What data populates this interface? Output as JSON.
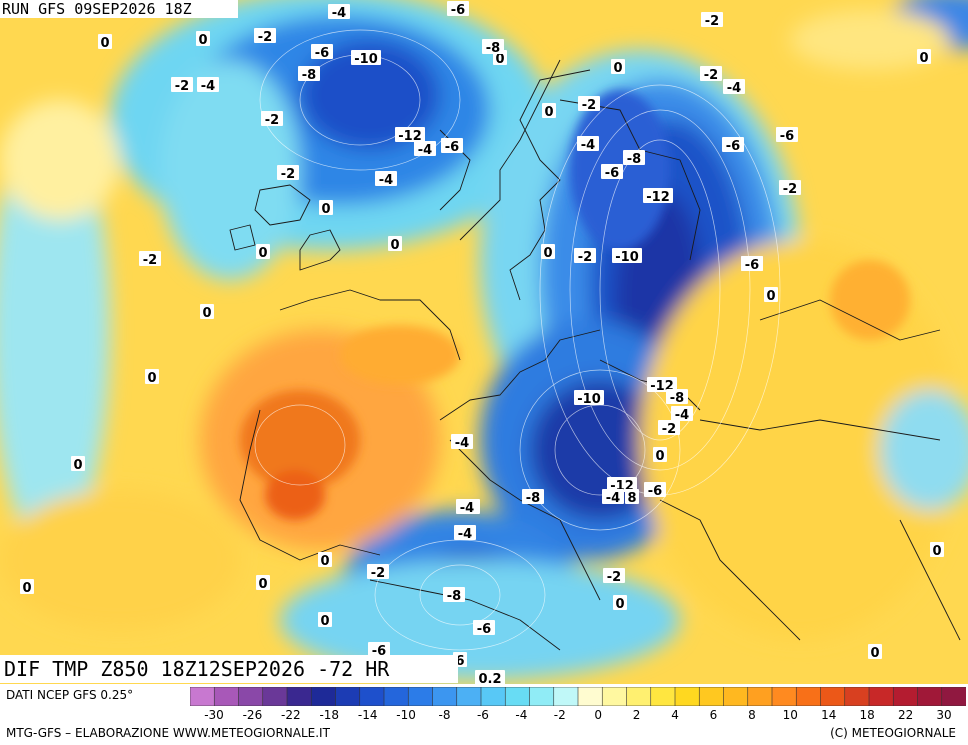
{
  "header": {
    "run_title": "RUN GFS 09SEP2026 18Z"
  },
  "map": {
    "title": "DIF TMP Z850 18Z12SEP2026 -72 HR",
    "contour_labels": [
      "0",
      "-2",
      "-4",
      "-6",
      "-8",
      "-10",
      "-12",
      "-4",
      "-6",
      "-2",
      "0",
      "0",
      "-2",
      "-4",
      "-6",
      "-8",
      "-2",
      "-4",
      "0",
      "0",
      "0",
      "-2",
      "0",
      "0",
      "0",
      "-4",
      "-6",
      "-8",
      "-6",
      "-4",
      "-2",
      "0",
      "0",
      "0",
      "-2",
      "-4",
      "-6",
      "-8",
      "-10",
      "-12",
      "-12",
      "-10",
      "-8",
      "-6",
      "-4",
      "-2",
      "0",
      "-2",
      "-4",
      "-6",
      "-12",
      "-4",
      "8",
      "-6",
      "-2",
      "0",
      "0",
      "0",
      "-2",
      "-6",
      "-8",
      "-4",
      "0",
      "-2",
      "0",
      "0",
      "0",
      "0.2",
      "6",
      "-6",
      "-4",
      "-2",
      "0",
      "0"
    ]
  },
  "legend": {
    "data_source": "DATI NCEP GFS 0.25°",
    "ticks": [
      "-30",
      "-26",
      "-22",
      "-18",
      "-14",
      "-10",
      "-8",
      "-6",
      "-4",
      "-2",
      "0",
      "2",
      "4",
      "6",
      "8",
      "10",
      "14",
      "18",
      "22",
      "30"
    ],
    "colors": [
      "#c878d0",
      "#a858b8",
      "#8a48a8",
      "#6a3898",
      "#3a2890",
      "#1e2a98",
      "#1c3cb4",
      "#1e50cc",
      "#2466dc",
      "#2c7ce8",
      "#3c96f0",
      "#4cb0f4",
      "#58c8f6",
      "#68dcf4",
      "#90ecf6",
      "#c0f8f8",
      "#fffcd0",
      "#fff8a0",
      "#fff070",
      "#ffe640",
      "#ffd820",
      "#ffc820",
      "#ffb820",
      "#ffa020",
      "#ff8a20",
      "#f87018",
      "#ec5818",
      "#d84020",
      "#c82828",
      "#b41c30",
      "#a01838",
      "#901840"
    ]
  },
  "footer": {
    "left": "MTG-GFS – ELABORAZIONE WWW.METEOGIORNALE.IT",
    "right": "(C) METEOGIORNALE"
  }
}
